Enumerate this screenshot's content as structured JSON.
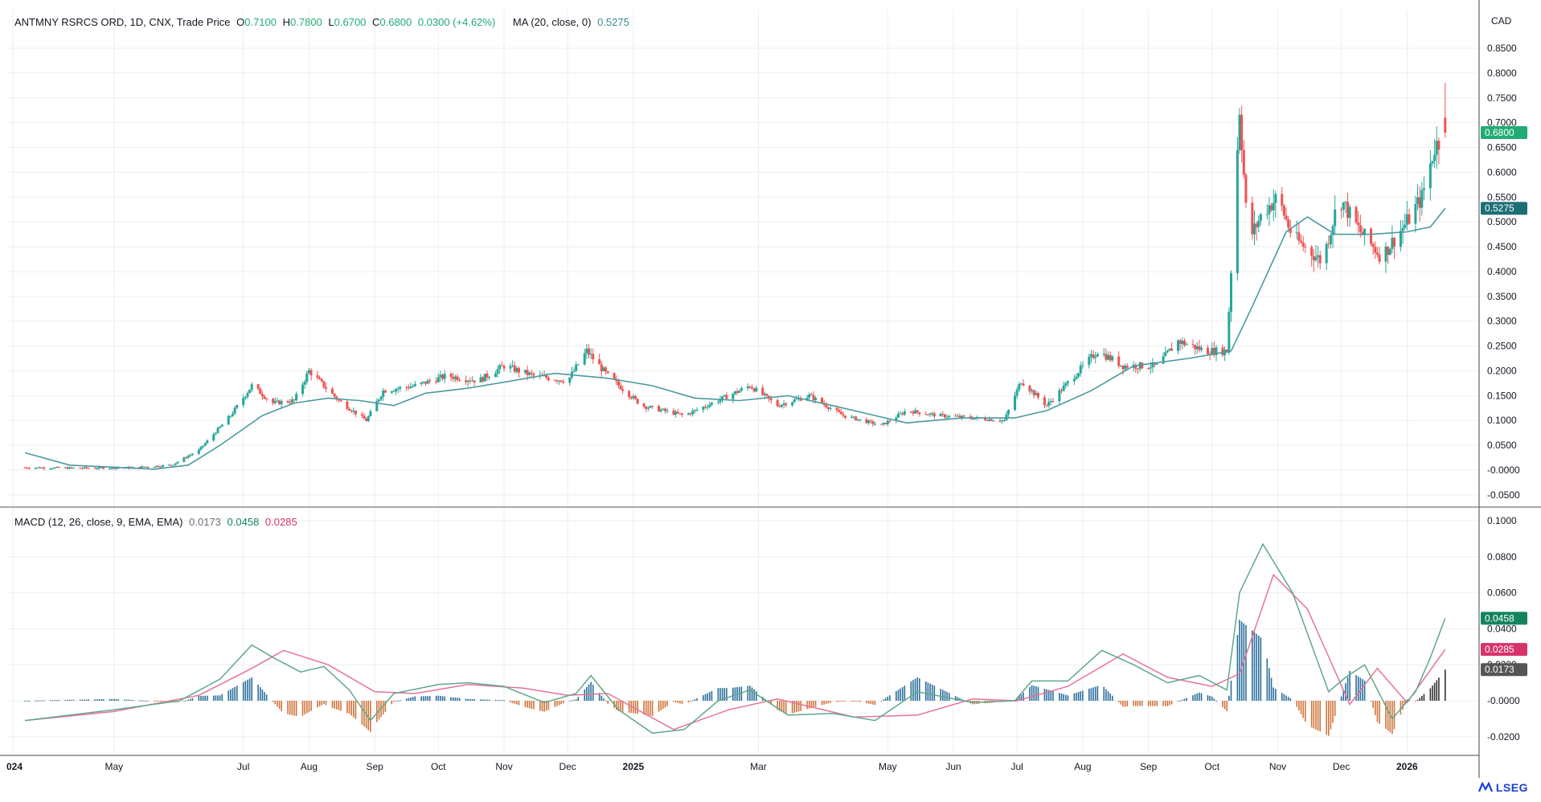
{
  "header": {
    "symbol": "ANTMNY RSRCS ORD, 1D, CNX, Trade Price",
    "open_label": "O",
    "open": "0.7100",
    "high_label": "H",
    "high": "0.7800",
    "low_label": "L",
    "low": "0.6700",
    "close_label": "C",
    "close": "0.6800",
    "change": "0.0300 (+4.62%)",
    "ma_label": "MA (20, close, 0)",
    "ma_value": "0.5275"
  },
  "macd_header": {
    "label": "MACD (12, 26, close, 9, EMA, EMA)",
    "hist": "0.0173",
    "macd": "0.0458",
    "signal": "0.0285"
  },
  "currency": "CAD",
  "price_axis": {
    "ticks": [
      "0.8500",
      "0.8000",
      "0.7500",
      "0.7000",
      "0.6500",
      "0.6000",
      "0.5500",
      "0.5000",
      "0.4500",
      "0.4000",
      "0.3500",
      "0.3000",
      "0.2500",
      "0.2000",
      "0.1500",
      "0.1000",
      "0.0500",
      "-0.0000",
      "-0.0500"
    ],
    "badges": {
      "close": "0.6800",
      "ma": "0.5275"
    }
  },
  "macd_axis": {
    "ticks": [
      "0.1000",
      "0.0800",
      "0.0600",
      "0.0400",
      "0.0200",
      "-0.0000",
      "-0.0200"
    ],
    "badges": {
      "macd": "0.0458",
      "signal": "0.0285",
      "hist": "0.0173"
    }
  },
  "time_axis": {
    "labels": [
      "024",
      "May",
      "Jul",
      "Aug",
      "Sep",
      "Oct",
      "Nov",
      "Dec",
      "2025",
      "Mar",
      "May",
      "Jun",
      "Jul",
      "Aug",
      "Sep",
      "Oct",
      "Nov",
      "Dec",
      "2026"
    ],
    "bold": [
      "024",
      "2025",
      "2026"
    ]
  },
  "colors": {
    "up": "#26a69a",
    "down": "#ef5350",
    "ma": "#4a9aa0",
    "macd": "#5fa88a",
    "signal": "#e8729a",
    "grid": "#eeeeee",
    "close_badge": "#22ab74",
    "ma_badge": "#1d6f76",
    "macd_badge": "#13855c",
    "signal_badge": "#d6336c",
    "hist_badge": "#555555"
  },
  "brand": "LSEG",
  "chart_data": [
    {
      "type": "candlestick",
      "title": "ANTMNY RSRCS ORD, 1D, CNX, Trade Price",
      "ylim": [
        -0.05,
        0.85
      ],
      "x_range": [
        "2024-03",
        "2026-01"
      ],
      "series": [
        {
          "name": "ANTMNY RSRCS ORD",
          "close_path": [
            [
              "2024-03-20",
              0.005
            ],
            [
              "2024-04-15",
              0.004
            ],
            [
              "2024-05-10",
              0.005
            ],
            [
              "2024-05-28",
              0.01
            ],
            [
              "2024-06-10",
              0.04
            ],
            [
              "2024-06-25",
              0.11
            ],
            [
              "2024-07-05",
              0.17
            ],
            [
              "2024-07-15",
              0.135
            ],
            [
              "2024-07-25",
              0.14
            ],
            [
              "2024-08-01",
              0.2
            ],
            [
              "2024-08-15",
              0.14
            ],
            [
              "2024-08-28",
              0.1
            ],
            [
              "2024-09-05",
              0.16
            ],
            [
              "2024-09-20",
              0.17
            ],
            [
              "2024-10-05",
              0.19
            ],
            [
              "2024-10-20",
              0.18
            ],
            [
              "2024-11-01",
              0.21
            ],
            [
              "2024-11-15",
              0.19
            ],
            [
              "2024-12-01",
              0.18
            ],
            [
              "2024-12-10",
              0.24
            ],
            [
              "2024-12-20",
              0.19
            ],
            [
              "2025-01-05",
              0.13
            ],
            [
              "2025-01-25",
              0.11
            ],
            [
              "2025-02-15",
              0.15
            ],
            [
              "2025-02-25",
              0.17
            ],
            [
              "2025-03-10",
              0.13
            ],
            [
              "2025-03-25",
              0.15
            ],
            [
              "2025-04-10",
              0.11
            ],
            [
              "2025-04-28",
              0.09
            ],
            [
              "2025-05-10",
              0.12
            ],
            [
              "2025-05-25",
              0.11
            ],
            [
              "2025-06-10",
              0.105
            ],
            [
              "2025-06-25",
              0.1
            ],
            [
              "2025-07-03",
              0.18
            ],
            [
              "2025-07-15",
              0.13
            ],
            [
              "2025-07-28",
              0.19
            ],
            [
              "2025-08-08",
              0.24
            ],
            [
              "2025-08-20",
              0.21
            ],
            [
              "2025-09-05",
              0.21
            ],
            [
              "2025-09-15",
              0.26
            ],
            [
              "2025-09-28",
              0.24
            ],
            [
              "2025-10-08",
              0.24
            ],
            [
              "2025-10-14",
              0.73
            ],
            [
              "2025-10-18",
              0.46
            ],
            [
              "2025-10-25",
              0.52
            ],
            [
              "2025-11-01",
              0.55
            ],
            [
              "2025-11-08",
              0.47
            ],
            [
              "2025-11-22",
              0.42
            ],
            [
              "2025-11-30",
              0.55
            ],
            [
              "2025-12-10",
              0.48
            ],
            [
              "2025-12-20",
              0.43
            ],
            [
              "2026-01-01",
              0.5
            ],
            [
              "2026-01-08",
              0.55
            ],
            [
              "2026-01-14",
              0.65
            ],
            [
              "2026-01-19",
              0.68
            ]
          ]
        },
        {
          "name": "MA (20, close, 0)",
          "values": [
            [
              "2024-03-20",
              0.035
            ],
            [
              "2024-04-10",
              0.01
            ],
            [
              "2024-05-20",
              0.002
            ],
            [
              "2024-06-05",
              0.01
            ],
            [
              "2024-06-20",
              0.05
            ],
            [
              "2024-07-10",
              0.11
            ],
            [
              "2024-07-25",
              0.135
            ],
            [
              "2024-08-10",
              0.145
            ],
            [
              "2024-08-25",
              0.14
            ],
            [
              "2024-09-10",
              0.13
            ],
            [
              "2024-09-25",
              0.155
            ],
            [
              "2024-10-15",
              0.165
            ],
            [
              "2024-11-05",
              0.18
            ],
            [
              "2024-11-25",
              0.195
            ],
            [
              "2024-12-20",
              0.185
            ],
            [
              "2025-01-10",
              0.17
            ],
            [
              "2025-01-30",
              0.145
            ],
            [
              "2025-02-20",
              0.14
            ],
            [
              "2025-03-15",
              0.15
            ],
            [
              "2025-04-05",
              0.13
            ],
            [
              "2025-04-25",
              0.11
            ],
            [
              "2025-05-10",
              0.095
            ],
            [
              "2025-06-05",
              0.105
            ],
            [
              "2025-06-30",
              0.105
            ],
            [
              "2025-07-15",
              0.12
            ],
            [
              "2025-08-05",
              0.16
            ],
            [
              "2025-08-25",
              0.21
            ],
            [
              "2025-09-20",
              0.225
            ],
            [
              "2025-10-10",
              0.24
            ],
            [
              "2025-10-20",
              0.33
            ],
            [
              "2025-11-05",
              0.48
            ],
            [
              "2025-11-15",
              0.51
            ],
            [
              "2025-11-28",
              0.475
            ],
            [
              "2025-12-15",
              0.475
            ],
            [
              "2026-01-01",
              0.48
            ],
            [
              "2026-01-12",
              0.49
            ],
            [
              "2026-01-19",
              0.5275
            ]
          ]
        }
      ],
      "last": {
        "open": 0.71,
        "high": 0.78,
        "low": 0.67,
        "close": 0.68
      }
    },
    {
      "type": "line",
      "title": "MACD (12, 26, close, 9, EMA, EMA)",
      "ylim": [
        -0.03,
        0.105
      ],
      "series": [
        {
          "name": "MACD",
          "values": [
            [
              "2024-03-20",
              -0.011
            ],
            [
              "2024-05-01",
              -0.005
            ],
            [
              "2024-06-01",
              0.0
            ],
            [
              "2024-06-20",
              0.012
            ],
            [
              "2024-07-05",
              0.031
            ],
            [
              "2024-07-15",
              0.024
            ],
            [
              "2024-07-28",
              0.016
            ],
            [
              "2024-08-08",
              0.019
            ],
            [
              "2024-08-20",
              0.006
            ],
            [
              "2024-08-30",
              -0.011
            ],
            [
              "2024-09-10",
              0.004
            ],
            [
              "2024-10-01",
              0.009
            ],
            [
              "2024-10-15",
              0.01
            ],
            [
              "2024-11-01",
              0.008
            ],
            [
              "2024-11-20",
              -0.001
            ],
            [
              "2024-12-05",
              0.004
            ],
            [
              "2024-12-12",
              0.014
            ],
            [
              "2024-12-25",
              -0.005
            ],
            [
              "2025-01-10",
              -0.018
            ],
            [
              "2025-01-25",
              -0.016
            ],
            [
              "2025-02-10",
              0.0
            ],
            [
              "2025-02-25",
              0.006
            ],
            [
              "2025-03-15",
              -0.008
            ],
            [
              "2025-04-05",
              -0.007
            ],
            [
              "2025-04-25",
              -0.011
            ],
            [
              "2025-05-15",
              0.005
            ],
            [
              "2025-06-10",
              -0.001
            ],
            [
              "2025-06-30",
              0.0
            ],
            [
              "2025-07-08",
              0.011
            ],
            [
              "2025-07-25",
              0.011
            ],
            [
              "2025-08-10",
              0.028
            ],
            [
              "2025-08-25",
              0.02
            ],
            [
              "2025-09-10",
              0.01
            ],
            [
              "2025-09-25",
              0.014
            ],
            [
              "2025-10-08",
              0.006
            ],
            [
              "2025-10-14",
              0.06
            ],
            [
              "2025-10-25",
              0.087
            ],
            [
              "2025-11-08",
              0.06
            ],
            [
              "2025-11-25",
              0.005
            ],
            [
              "2025-12-03",
              0.013
            ],
            [
              "2025-12-12",
              0.02
            ],
            [
              "2025-12-25",
              -0.01
            ],
            [
              "2026-01-05",
              0.005
            ],
            [
              "2026-01-12",
              0.024
            ],
            [
              "2026-01-19",
              0.0458
            ]
          ]
        },
        {
          "name": "Signal",
          "values": [
            [
              "2024-03-20",
              -0.011
            ],
            [
              "2024-05-01",
              -0.006
            ],
            [
              "2024-06-10",
              0.003
            ],
            [
              "2024-07-05",
              0.018
            ],
            [
              "2024-07-20",
              0.028
            ],
            [
              "2024-08-10",
              0.02
            ],
            [
              "2024-09-01",
              0.005
            ],
            [
              "2024-09-20",
              0.004
            ],
            [
              "2024-10-15",
              0.009
            ],
            [
              "2024-11-10",
              0.007
            ],
            [
              "2024-12-01",
              0.003
            ],
            [
              "2024-12-20",
              0.004
            ],
            [
              "2025-01-20",
              -0.016
            ],
            [
              "2025-02-15",
              -0.005
            ],
            [
              "2025-03-10",
              0.001
            ],
            [
              "2025-04-15",
              -0.009
            ],
            [
              "2025-05-15",
              -0.008
            ],
            [
              "2025-06-10",
              0.001
            ],
            [
              "2025-07-01",
              0.0
            ],
            [
              "2025-07-25",
              0.008
            ],
            [
              "2025-08-20",
              0.026
            ],
            [
              "2025-09-10",
              0.013
            ],
            [
              "2025-10-01",
              0.008
            ],
            [
              "2025-10-14",
              0.015
            ],
            [
              "2025-10-30",
              0.07
            ],
            [
              "2025-11-15",
              0.051
            ],
            [
              "2025-12-05",
              -0.002
            ],
            [
              "2025-12-18",
              0.018
            ],
            [
              "2026-01-01",
              -0.001
            ],
            [
              "2026-01-19",
              0.0285
            ]
          ]
        },
        {
          "name": "Histogram",
          "values": [
            [
              "2024-06-20",
              0.003
            ],
            [
              "2024-07-05",
              0.011
            ],
            [
              "2024-08-01",
              -0.004
            ],
            [
              "2024-09-01",
              -0.008
            ],
            [
              "2024-10-10",
              0.003
            ],
            [
              "2024-12-12",
              0.008
            ],
            [
              "2025-01-10",
              -0.01
            ],
            [
              "2025-02-20",
              0.005
            ],
            [
              "2025-05-10",
              0.004
            ],
            [
              "2025-07-10",
              0.01
            ],
            [
              "2025-08-10",
              0.008
            ],
            [
              "2025-09-01",
              -0.005
            ],
            [
              "2025-10-14",
              0.042
            ],
            [
              "2025-10-28",
              0.028
            ],
            [
              "2025-11-20",
              -0.017
            ],
            [
              "2025-12-05",
              0.008
            ],
            [
              "2025-12-28",
              -0.01
            ],
            [
              "2026-01-19",
              0.0173
            ]
          ]
        }
      ]
    }
  ]
}
